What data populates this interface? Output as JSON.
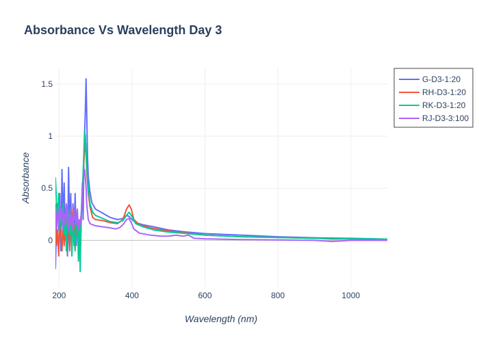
{
  "chart_data": {
    "type": "line",
    "title": "Absorbance Vs Wavelength Day 3",
    "xlabel": "Wavelength (nm)",
    "ylabel": "Absorbance",
    "xlim": [
      190,
      1100
    ],
    "ylim": [
      -0.45,
      1.65
    ],
    "x_ticks": [
      200,
      400,
      600,
      800,
      1000
    ],
    "x_tick_labels": [
      "200",
      "400",
      "600",
      "800",
      "1000"
    ],
    "y_ticks": [
      0,
      0.5,
      1,
      1.5
    ],
    "y_tick_labels": [
      "0",
      "0.5",
      "1",
      "1.5"
    ],
    "grid": true,
    "legend_position": "top-right",
    "series": [
      {
        "name": "G-D3-1:20",
        "color": "#636efa",
        "points": [
          [
            190,
            -0.27
          ],
          [
            193,
            0.2
          ],
          [
            196,
            0.35
          ],
          [
            199,
            0.1
          ],
          [
            202,
            0.45
          ],
          [
            205,
            -0.1
          ],
          [
            208,
            0.68
          ],
          [
            211,
            0.15
          ],
          [
            214,
            0.55
          ],
          [
            217,
            0.0
          ],
          [
            220,
            0.3
          ],
          [
            223,
            -0.15
          ],
          [
            226,
            0.7
          ],
          [
            229,
            0.1
          ],
          [
            232,
            0.45
          ],
          [
            235,
            -0.1
          ],
          [
            238,
            0.35
          ],
          [
            241,
            0.05
          ],
          [
            244,
            0.45
          ],
          [
            247,
            -0.05
          ],
          [
            250,
            0.25
          ],
          [
            253,
            0.1
          ],
          [
            256,
            0.15
          ],
          [
            259,
            -0.05
          ],
          [
            262,
            0.35
          ],
          [
            264,
            0.55
          ],
          [
            266,
            0.2
          ],
          [
            268,
            0.8
          ],
          [
            270,
            1.0
          ],
          [
            272,
            1.25
          ],
          [
            274,
            1.55
          ],
          [
            276,
            1.2
          ],
          [
            278,
            0.8
          ],
          [
            280,
            0.62
          ],
          [
            284,
            0.48
          ],
          [
            290,
            0.36
          ],
          [
            300,
            0.3
          ],
          [
            320,
            0.26
          ],
          [
            340,
            0.22
          ],
          [
            360,
            0.2
          ],
          [
            375,
            0.21
          ],
          [
            385,
            0.24
          ],
          [
            392,
            0.23
          ],
          [
            400,
            0.2
          ],
          [
            410,
            0.17
          ],
          [
            430,
            0.15
          ],
          [
            460,
            0.13
          ],
          [
            500,
            0.1
          ],
          [
            550,
            0.08
          ],
          [
            600,
            0.065
          ],
          [
            700,
            0.05
          ],
          [
            800,
            0.035
          ],
          [
            900,
            0.025
          ],
          [
            1000,
            0.02
          ],
          [
            1100,
            0.012
          ]
        ]
      },
      {
        "name": "RH-D3-1:20",
        "color": "#ef553b",
        "points": [
          [
            190,
            0.35
          ],
          [
            193,
            -0.05
          ],
          [
            196,
            0.1
          ],
          [
            199,
            -0.15
          ],
          [
            202,
            0.2
          ],
          [
            205,
            0.05
          ],
          [
            208,
            -0.1
          ],
          [
            211,
            0.15
          ],
          [
            214,
            -0.05
          ],
          [
            217,
            0.25
          ],
          [
            220,
            0.0
          ],
          [
            223,
            0.3
          ],
          [
            226,
            0.1
          ],
          [
            229,
            -0.1
          ],
          [
            232,
            0.2
          ],
          [
            235,
            0.05
          ],
          [
            238,
            0.3
          ],
          [
            241,
            -0.05
          ],
          [
            244,
            0.15
          ],
          [
            247,
            0.05
          ],
          [
            250,
            0.2
          ],
          [
            253,
            -0.05
          ],
          [
            256,
            0.1
          ],
          [
            259,
            0.2
          ],
          [
            262,
            0.3
          ],
          [
            264,
            0.5
          ],
          [
            266,
            0.6
          ],
          [
            268,
            0.75
          ],
          [
            270,
            0.85
          ],
          [
            272,
            0.95
          ],
          [
            274,
            0.85
          ],
          [
            276,
            0.65
          ],
          [
            280,
            0.45
          ],
          [
            285,
            0.32
          ],
          [
            292,
            0.22
          ],
          [
            300,
            0.2
          ],
          [
            320,
            0.19
          ],
          [
            340,
            0.17
          ],
          [
            360,
            0.16
          ],
          [
            375,
            0.2
          ],
          [
            385,
            0.3
          ],
          [
            392,
            0.34
          ],
          [
            398,
            0.3
          ],
          [
            405,
            0.2
          ],
          [
            420,
            0.15
          ],
          [
            450,
            0.12
          ],
          [
            500,
            0.09
          ],
          [
            550,
            0.07
          ],
          [
            600,
            0.05
          ],
          [
            700,
            0.035
          ],
          [
            800,
            0.028
          ],
          [
            900,
            0.02
          ],
          [
            950,
            0.013
          ],
          [
            1000,
            0.013
          ],
          [
            1100,
            0.01
          ]
        ]
      },
      {
        "name": "RK-D3-1:20",
        "color": "#00cc96",
        "points": [
          [
            190,
            0.6
          ],
          [
            193,
            0.35
          ],
          [
            196,
            0.2
          ],
          [
            199,
            0.45
          ],
          [
            202,
            0.1
          ],
          [
            205,
            0.3
          ],
          [
            208,
            0.15
          ],
          [
            211,
            0.35
          ],
          [
            214,
            0.05
          ],
          [
            217,
            0.2
          ],
          [
            220,
            -0.1
          ],
          [
            223,
            0.3
          ],
          [
            226,
            0.15
          ],
          [
            229,
            0.05
          ],
          [
            232,
            0.25
          ],
          [
            235,
            -0.15
          ],
          [
            238,
            0.2
          ],
          [
            241,
            0.1
          ],
          [
            244,
            -0.1
          ],
          [
            247,
            0.15
          ],
          [
            250,
            0.3
          ],
          [
            253,
            -0.2
          ],
          [
            256,
            0.15
          ],
          [
            258,
            -0.3
          ],
          [
            260,
            0.2
          ],
          [
            262,
            0.35
          ],
          [
            264,
            0.5
          ],
          [
            266,
            0.65
          ],
          [
            268,
            0.85
          ],
          [
            270,
            1.05
          ],
          [
            272,
            1.0
          ],
          [
            274,
            0.85
          ],
          [
            276,
            0.7
          ],
          [
            280,
            0.5
          ],
          [
            285,
            0.35
          ],
          [
            292,
            0.27
          ],
          [
            300,
            0.24
          ],
          [
            320,
            0.21
          ],
          [
            340,
            0.18
          ],
          [
            360,
            0.17
          ],
          [
            375,
            0.19
          ],
          [
            385,
            0.24
          ],
          [
            392,
            0.27
          ],
          [
            400,
            0.23
          ],
          [
            410,
            0.16
          ],
          [
            430,
            0.13
          ],
          [
            460,
            0.1
          ],
          [
            500,
            0.08
          ],
          [
            550,
            0.065
          ],
          [
            600,
            0.05
          ],
          [
            700,
            0.035
          ],
          [
            800,
            0.028
          ],
          [
            900,
            0.02
          ],
          [
            1000,
            0.015
          ],
          [
            1100,
            0.012
          ]
        ]
      },
      {
        "name": "RJ-D3-3:100",
        "color": "#ab63fa",
        "points": [
          [
            190,
            0.3
          ],
          [
            193,
            0.1
          ],
          [
            196,
            0.3
          ],
          [
            199,
            0.15
          ],
          [
            202,
            0.35
          ],
          [
            205,
            0.2
          ],
          [
            208,
            0.3
          ],
          [
            211,
            0.1
          ],
          [
            214,
            0.25
          ],
          [
            217,
            0.15
          ],
          [
            220,
            0.35
          ],
          [
            223,
            0.2
          ],
          [
            226,
            0.1
          ],
          [
            229,
            0.3
          ],
          [
            232,
            0.15
          ],
          [
            235,
            0.25
          ],
          [
            238,
            0.1
          ],
          [
            241,
            0.3
          ],
          [
            244,
            0.2
          ],
          [
            247,
            0.15
          ],
          [
            250,
            0.3
          ],
          [
            253,
            0.1
          ],
          [
            256,
            0.2
          ],
          [
            259,
            0.15
          ],
          [
            262,
            0.3
          ],
          [
            264,
            0.45
          ],
          [
            266,
            0.55
          ],
          [
            268,
            0.65
          ],
          [
            270,
            0.68
          ],
          [
            272,
            0.6
          ],
          [
            274,
            0.5
          ],
          [
            276,
            0.35
          ],
          [
            280,
            0.2
          ],
          [
            285,
            0.16
          ],
          [
            292,
            0.15
          ],
          [
            300,
            0.14
          ],
          [
            320,
            0.13
          ],
          [
            340,
            0.12
          ],
          [
            355,
            0.11
          ],
          [
            365,
            0.12
          ],
          [
            375,
            0.15
          ],
          [
            385,
            0.2
          ],
          [
            392,
            0.21
          ],
          [
            398,
            0.17
          ],
          [
            405,
            0.11
          ],
          [
            420,
            0.07
          ],
          [
            450,
            0.05
          ],
          [
            480,
            0.04
          ],
          [
            500,
            0.04
          ],
          [
            520,
            0.05
          ],
          [
            540,
            0.04
          ],
          [
            555,
            0.05
          ],
          [
            570,
            0.02
          ],
          [
            600,
            0.015
          ],
          [
            700,
            0.008
          ],
          [
            800,
            0.005
          ],
          [
            900,
            0.0
          ],
          [
            950,
            -0.01
          ],
          [
            1000,
            0.0
          ],
          [
            1100,
            0.0
          ]
        ]
      }
    ]
  }
}
